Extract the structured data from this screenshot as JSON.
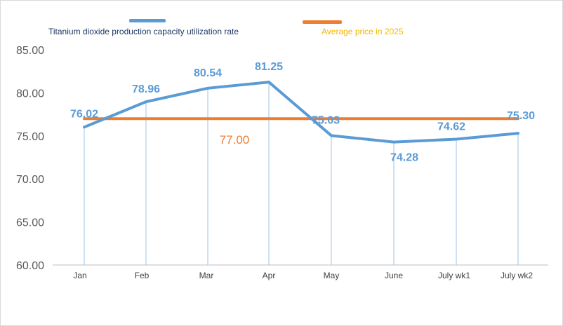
{
  "legend": {
    "series1_label": "Titanium dioxide production capacity utilization rate",
    "series2_label": "Average price in 2025"
  },
  "colors": {
    "series1": "#5b9bd5",
    "series2": "#ed7d31",
    "grid": "#9dc3e6",
    "axis_text": "#595959",
    "legend2_text": "#f2b800"
  },
  "chart_data": {
    "type": "line",
    "categories": [
      "Jan",
      "Feb",
      "Mar",
      "Apr",
      "May",
      "June",
      "July wk1",
      "July wk2"
    ],
    "series": [
      {
        "name": "Titanium dioxide production capacity utilization rate",
        "values": [
          76.02,
          78.96,
          80.54,
          81.25,
          75.03,
          74.28,
          74.62,
          75.3
        ],
        "labels": [
          "76.02",
          "78.96",
          "80.54",
          "81.25",
          "75.03",
          "74.28",
          "74.62",
          "75.30"
        ]
      },
      {
        "name": "Average price in 2025",
        "values": [
          77.0,
          77.0,
          77.0,
          77.0,
          77.0,
          77.0,
          77.0,
          77.0
        ],
        "label": "77.00"
      }
    ],
    "yticks": [
      "60.00",
      "65.00",
      "70.00",
      "75.00",
      "80.00",
      "85.00"
    ],
    "ylim": [
      60,
      85
    ],
    "grid": "vertical",
    "legend_position": "top"
  }
}
